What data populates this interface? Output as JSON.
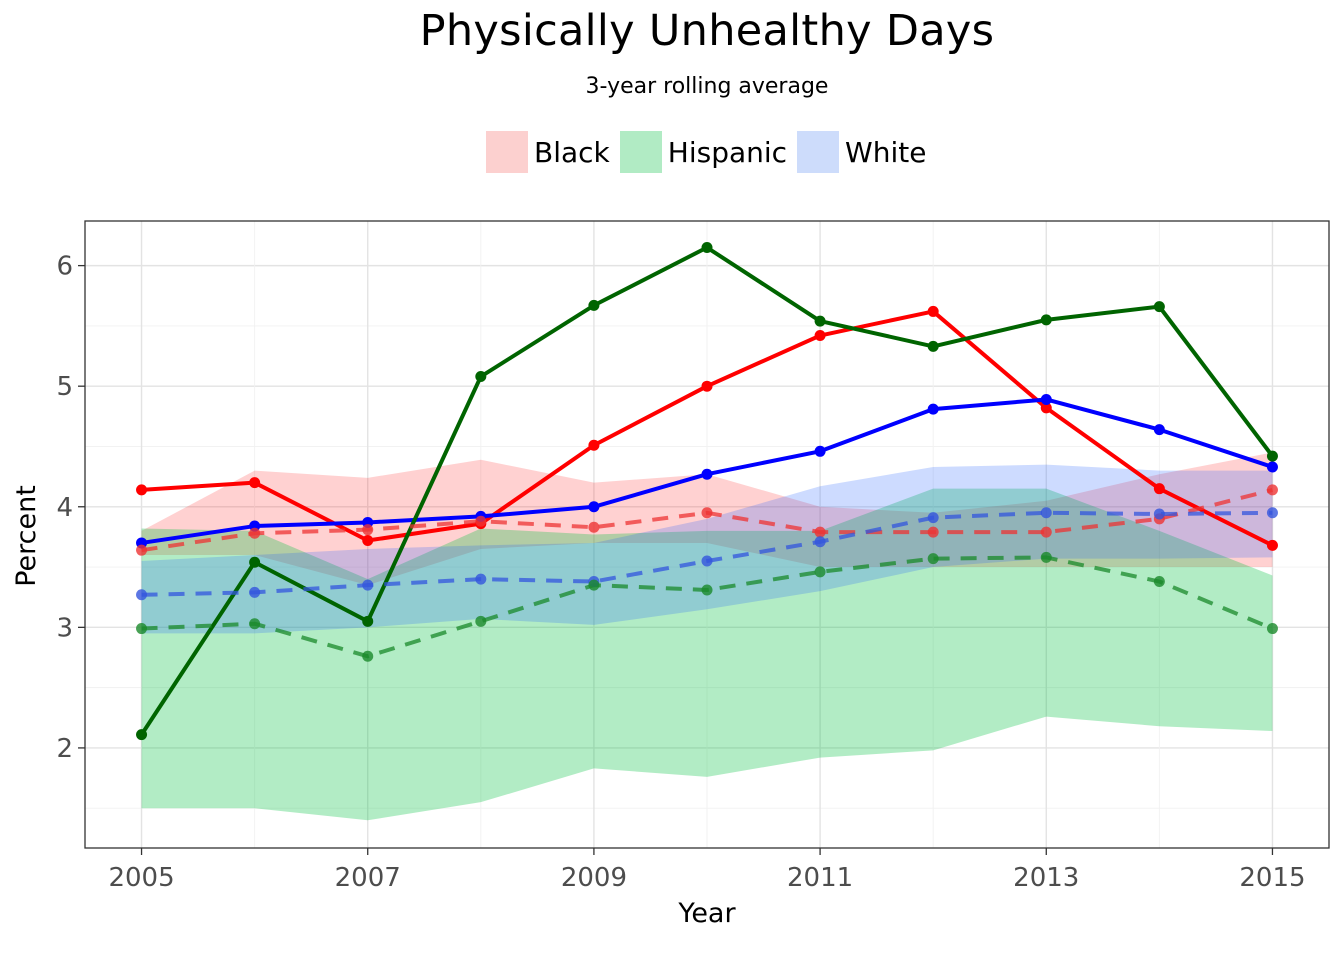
{
  "chart_data": {
    "type": "line",
    "title": "Physically Unhealthy Days",
    "subtitle": "3-year rolling average",
    "xlabel": "Year",
    "ylabel": "Percent",
    "x": [
      2005,
      2006,
      2007,
      2008,
      2009,
      2010,
      2011,
      2012,
      2013,
      2014,
      2015
    ],
    "xticks": [
      2005,
      2007,
      2009,
      2011,
      2013,
      2015
    ],
    "yticks": [
      2,
      3,
      4,
      5,
      6
    ],
    "xlim": [
      2004.5,
      2015.5
    ],
    "ylim": [
      1.17,
      6.37
    ],
    "grid": true,
    "legend_position": "top",
    "legend": [
      {
        "label": "Black",
        "color": "#fcd0cf"
      },
      {
        "label": "Hispanic",
        "color": "#b1ebc4"
      },
      {
        "label": "White",
        "color": "#cddcfb"
      }
    ],
    "bands": [
      {
        "name": "Black",
        "color": "#ff0000",
        "opacity": 0.18,
        "lower": [
          3.6,
          3.6,
          3.35,
          3.65,
          3.7,
          3.7,
          3.5,
          3.5,
          3.5,
          3.5,
          3.5
        ],
        "upper": [
          3.8,
          4.3,
          4.24,
          4.39,
          4.2,
          4.27,
          4.0,
          3.95,
          4.05,
          4.27,
          4.45
        ]
      },
      {
        "name": "Hispanic",
        "color": "#00c040",
        "opacity": 0.3,
        "lower": [
          1.5,
          1.5,
          1.4,
          1.55,
          1.83,
          1.76,
          1.92,
          1.98,
          2.26,
          2.18,
          2.14
        ],
        "upper": [
          3.82,
          3.8,
          3.4,
          3.82,
          3.77,
          3.8,
          3.8,
          4.15,
          4.15,
          3.8,
          3.43
        ]
      },
      {
        "name": "White",
        "color": "#1a5cff",
        "opacity": 0.22,
        "lower": [
          2.95,
          2.95,
          3.0,
          3.07,
          3.02,
          3.15,
          3.3,
          3.5,
          3.57,
          3.57,
          3.58
        ],
        "upper": [
          3.55,
          3.6,
          3.65,
          3.68,
          3.7,
          3.9,
          4.17,
          4.33,
          4.35,
          4.3,
          4.3
        ]
      }
    ],
    "series": [
      {
        "color": "#ff0000",
        "style": "solid",
        "values": [
          4.14,
          4.2,
          3.72,
          3.86,
          4.51,
          5.0,
          5.42,
          5.62,
          4.82,
          4.15,
          3.68
        ]
      },
      {
        "color": "#0000ff",
        "style": "solid",
        "values": [
          3.7,
          3.84,
          3.87,
          3.92,
          4.0,
          4.27,
          4.46,
          4.81,
          4.89,
          4.64,
          4.33
        ]
      },
      {
        "color": "#006400",
        "style": "solid",
        "values": [
          2.11,
          3.54,
          3.05,
          5.08,
          5.67,
          6.15,
          5.54,
          5.33,
          5.55,
          5.66,
          4.42
        ]
      },
      {
        "color": "#ee3333",
        "style": "dashed",
        "values": [
          3.64,
          3.78,
          3.81,
          3.88,
          3.83,
          3.95,
          3.79,
          3.79,
          3.79,
          3.9,
          4.14
        ]
      },
      {
        "color": "#3355dd",
        "style": "dashed",
        "values": [
          3.27,
          3.29,
          3.35,
          3.4,
          3.38,
          3.55,
          3.71,
          3.91,
          3.95,
          3.94,
          3.95
        ]
      },
      {
        "color": "#1a8a2a",
        "style": "dashed",
        "values": [
          2.99,
          3.03,
          2.76,
          3.05,
          3.35,
          3.31,
          3.46,
          3.57,
          3.58,
          3.38,
          2.99
        ]
      }
    ]
  }
}
